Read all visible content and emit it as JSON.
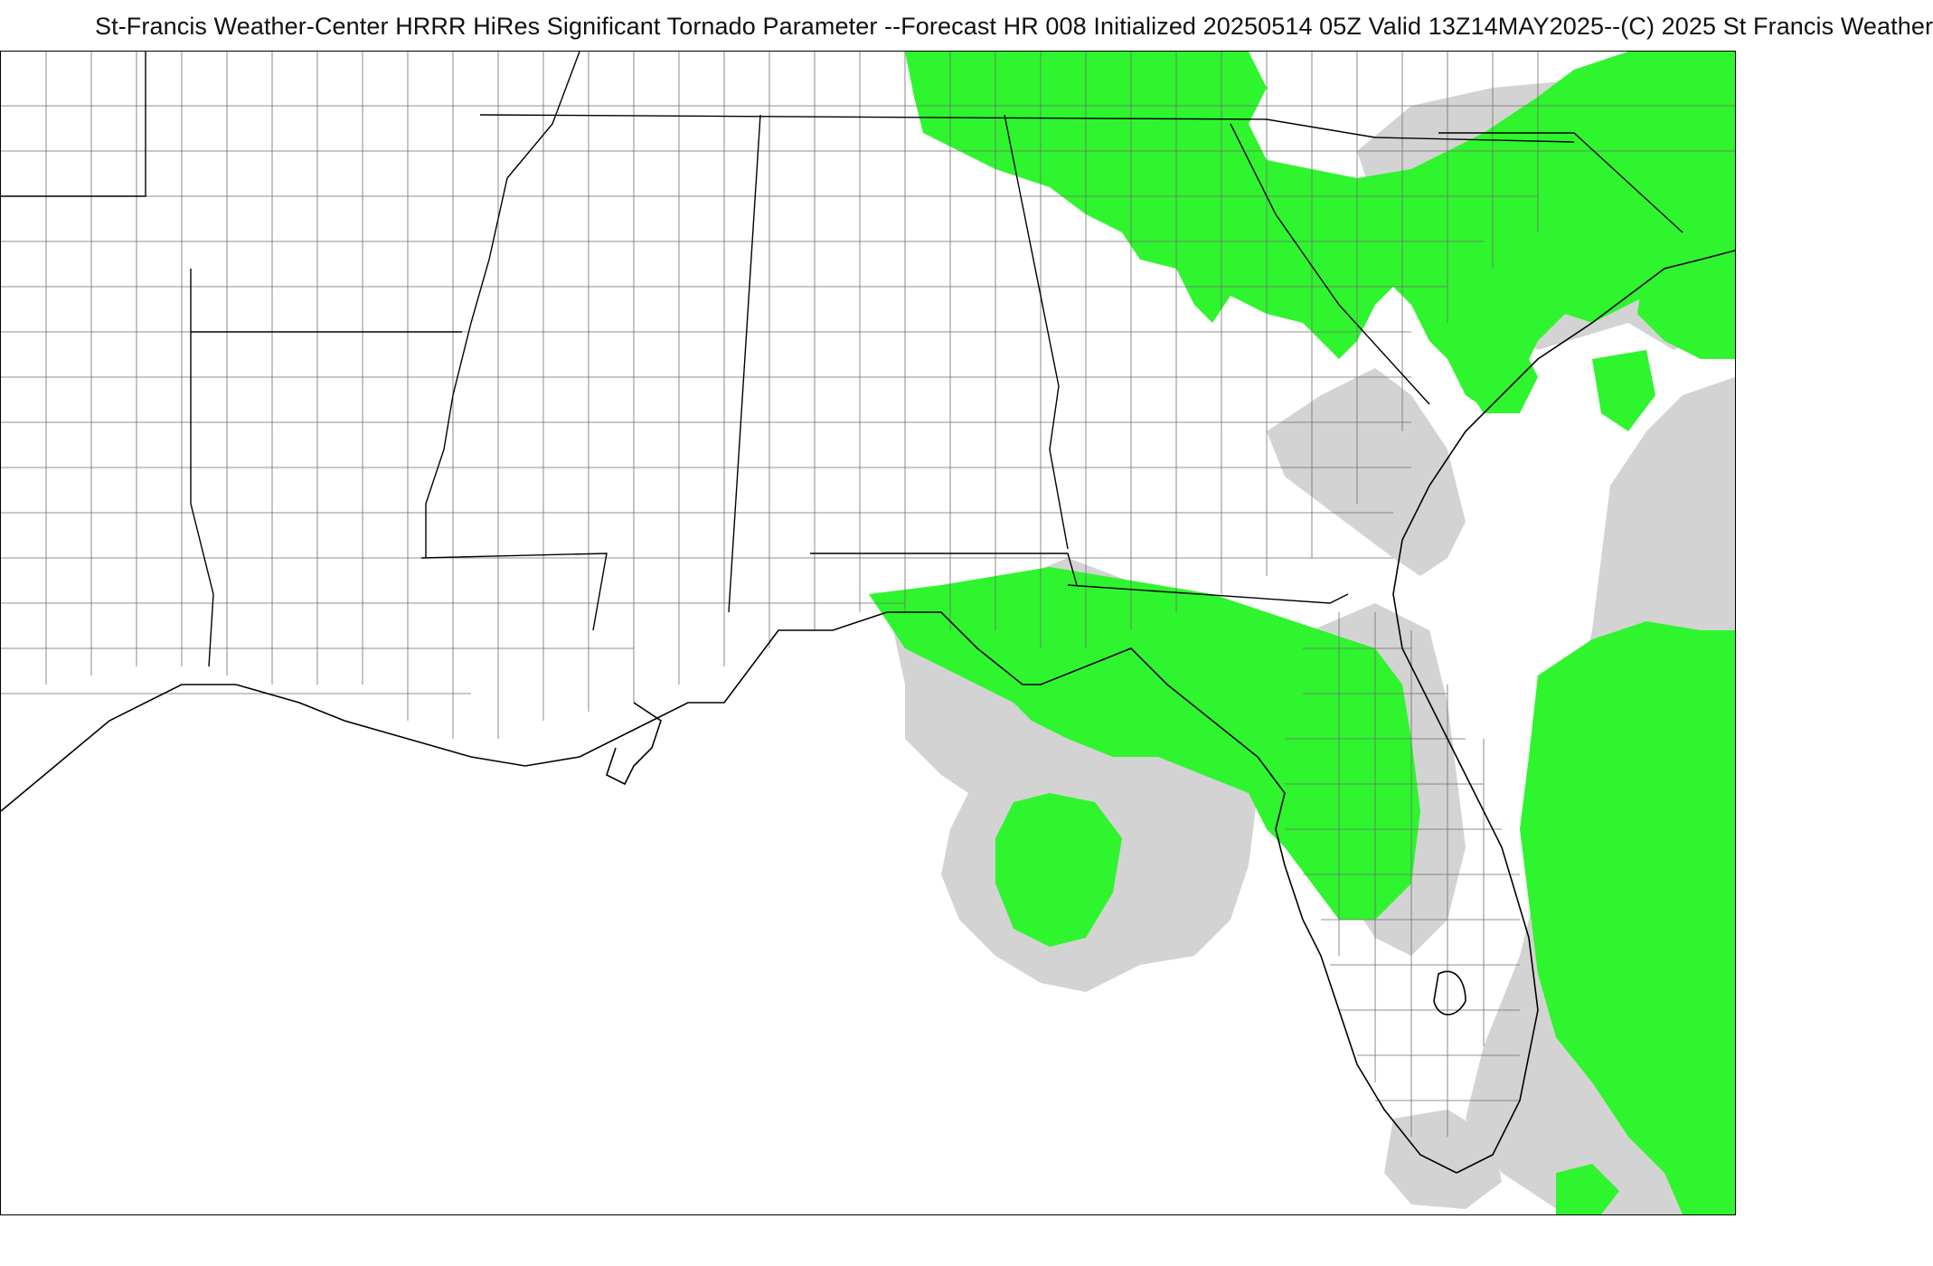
{
  "title": "St-Francis Weather-Center HRRR HiRes Significant Tornado Parameter --Forecast HR 008 Initialized 20250514 05Z Valid 13Z14MAY2025--(C) 2025 St Francis Weather",
  "colors": {
    "background": "#ffffff",
    "grey_shading": "#d3d3d3",
    "green_shading": "#2ef52e",
    "county_lines": "#6e6e6e",
    "state_lines": "#000000",
    "coastline": "#000000"
  },
  "map": {
    "product": "HRRR Significant Tornado Parameter",
    "region": "Southeastern United States and Gulf of Mexico"
  }
}
